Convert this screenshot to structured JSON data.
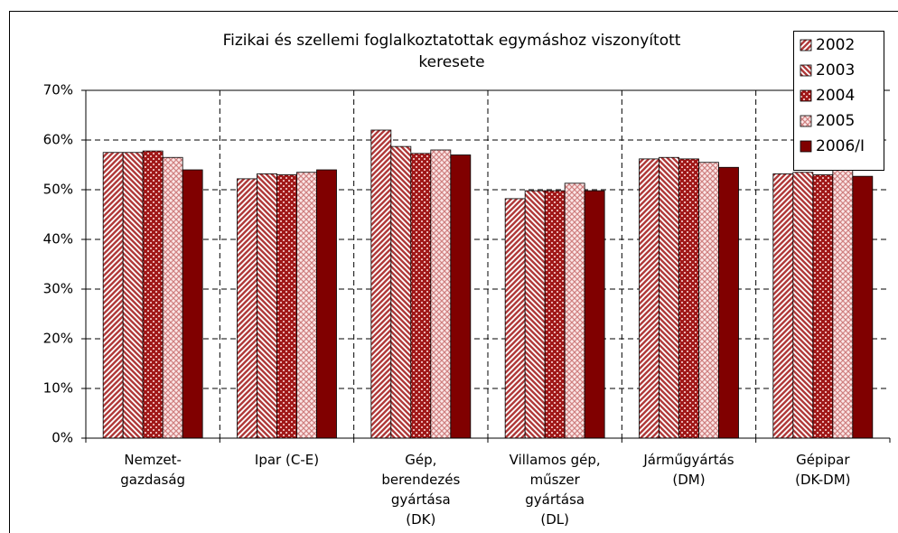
{
  "chart_data": {
    "type": "bar",
    "title": "Fizikai és szellemi foglalkoztatottak egymáshoz viszonyított\nkeresete",
    "categories": [
      "Nemzet-\ngazdaság",
      "Ipar (C-E)",
      "Gép,\nberendezés\ngyártása\n(DK)",
      "Villamos gép,\nműszer\ngyártása\n(DL)",
      "Járműgyártás\n(DM)",
      "Gépipar\n(DK-DM)"
    ],
    "series": [
      {
        "name": "2002",
        "color": "#b03a3a",
        "values": [
          57.5,
          52.2,
          62,
          48.2,
          56.2,
          53.2
        ]
      },
      {
        "name": "2003",
        "color": "#b03a3a",
        "values": [
          57.5,
          53.2,
          58.7,
          49.8,
          56.5,
          53.5
        ]
      },
      {
        "name": "2004",
        "color": "#a01818",
        "values": [
          57.8,
          53,
          57.3,
          49.8,
          56.2,
          53
        ]
      },
      {
        "name": "2005",
        "color": "#d08080",
        "values": [
          56.5,
          53.5,
          58,
          51.3,
          55.5,
          54
        ]
      },
      {
        "name": "2006/I",
        "color": "#800000",
        "values": [
          54,
          54,
          57,
          49.8,
          54.5,
          52.7
        ]
      }
    ],
    "ylim": [
      0,
      70
    ],
    "yticks": [
      {
        "value": 0,
        "label": "0%"
      },
      {
        "value": 10,
        "label": "10%"
      },
      {
        "value": 20,
        "label": "20%"
      },
      {
        "value": 30,
        "label": "30%"
      },
      {
        "value": 40,
        "label": "40%"
      },
      {
        "value": 50,
        "label": "50%"
      },
      {
        "value": 60,
        "label": "60%"
      },
      {
        "value": 70,
        "label": "70%"
      }
    ],
    "grid": true
  }
}
